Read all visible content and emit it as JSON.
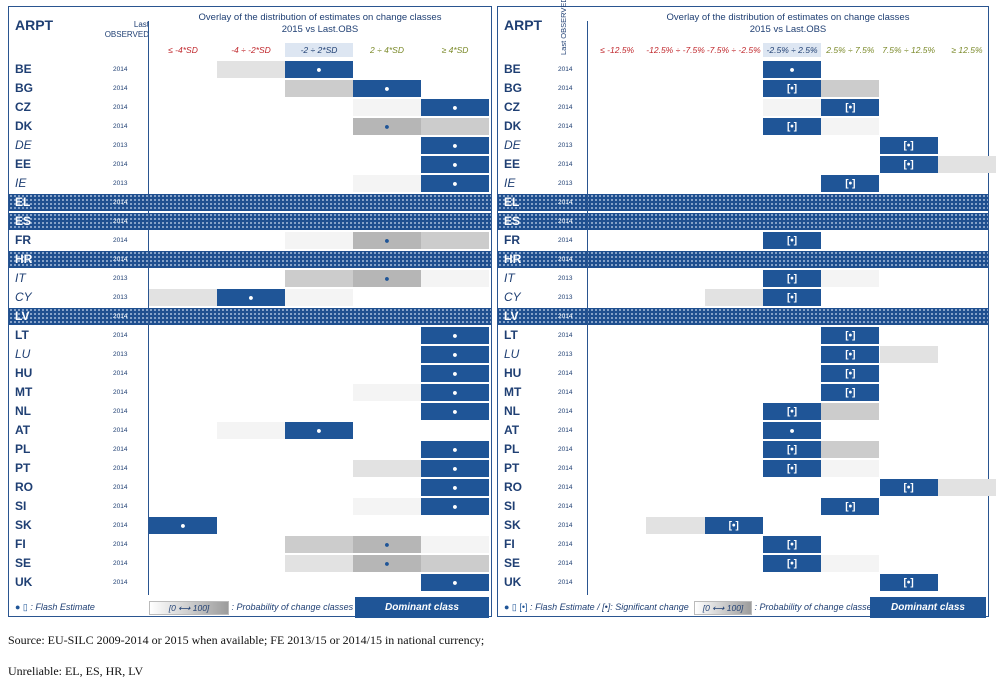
{
  "colors": {
    "dominant": "#1f5597",
    "g1": "#f4f4f4",
    "g2": "#e2e2e2",
    "g3": "#cccccc",
    "g4": "#b6b6b6"
  },
  "left": {
    "arpt": "ARPT",
    "last_observed": [
      "Last",
      "OBSERVED"
    ],
    "title1": "Overlay of the distribution of estimates on change classes",
    "title2": "2015 vs Last.OBS",
    "classes": [
      {
        "label": "≤ -4*SD",
        "color": "#c0282d"
      },
      {
        "label": "-4 ÷ -2*SD",
        "color": "#c0282d"
      },
      {
        "label": "-2 ÷ 2*SD",
        "color": "#1f3f73"
      },
      {
        "label": "2 ÷ 4*SD",
        "color": "#7b8a2a"
      },
      {
        "label": "≥ 4*SD",
        "color": "#7b8a2a"
      }
    ],
    "legend": {
      "flash": "Flash Estimate",
      "range_from": "[0",
      "range_to": "100]",
      "prob": ": Probability of change classes",
      "dominant": "Dominant class"
    }
  },
  "right": {
    "arpt": "ARPT",
    "last_observed": "Last OBSERVED",
    "title1": "Overlay of the distribution of estimates on change classes",
    "title2": "2015 vs Last.OBS",
    "classes": [
      {
        "label": "≤ -12.5%",
        "color": "#c0282d"
      },
      {
        "label": "-12.5% ÷ -7.5%",
        "color": "#c0282d"
      },
      {
        "label": "-7.5% ÷ -2.5%",
        "color": "#c0282d"
      },
      {
        "label": "-2.5% ÷ 2.5%",
        "color": "#1f3f73"
      },
      {
        "label": "2.5% ÷ 7.5%",
        "color": "#7b8a2a"
      },
      {
        "label": "7.5% ÷ 12.5%",
        "color": "#7b8a2a"
      },
      {
        "label": "≥ 12.5%",
        "color": "#7b8a2a"
      }
    ],
    "legend": {
      "flash": "Flash Estimate  /  [•]: Significant change",
      "range_from": "[0",
      "range_to": "100]",
      "prob": ": Probability of change classes",
      "dominant": "Dominant class"
    }
  },
  "rows": [
    {
      "code": "BE",
      "year": "2014",
      "italic": false,
      "L": [
        0,
        2,
        "D",
        0,
        0
      ],
      "Ld": 2,
      "R": [
        0,
        0,
        0,
        "D",
        0,
        0,
        0
      ],
      "Rd": 3,
      "Rb": false
    },
    {
      "code": "BG",
      "year": "2014",
      "italic": false,
      "L": [
        0,
        0,
        3,
        "D",
        0
      ],
      "Ld": 3,
      "R": [
        0,
        0,
        0,
        "D",
        3,
        0,
        0
      ],
      "Rd": 3,
      "Rb": true
    },
    {
      "code": "CZ",
      "year": "2014",
      "italic": false,
      "L": [
        0,
        0,
        0,
        1,
        "D"
      ],
      "Ld": 4,
      "R": [
        0,
        0,
        0,
        1,
        "D",
        0,
        0
      ],
      "Rd": 4,
      "Rb": true
    },
    {
      "code": "DK",
      "year": "2014",
      "italic": false,
      "L": [
        0,
        0,
        0,
        "G",
        3
      ],
      "Ld": 3,
      "R": [
        0,
        0,
        0,
        "D",
        1,
        0,
        0
      ],
      "Rd": 3,
      "Rb": true
    },
    {
      "code": "DE",
      "year": "2013",
      "italic": true,
      "L": [
        0,
        0,
        0,
        0,
        "D"
      ],
      "Ld": 4,
      "R": [
        0,
        0,
        0,
        0,
        0,
        "D",
        0
      ],
      "Rd": 5,
      "Rb": true
    },
    {
      "code": "EE",
      "year": "2014",
      "italic": false,
      "L": [
        0,
        0,
        0,
        0,
        "D"
      ],
      "Ld": 4,
      "R": [
        0,
        0,
        0,
        0,
        0,
        "D",
        2
      ],
      "Rd": 5,
      "Rb": true
    },
    {
      "code": "IE",
      "year": "2013",
      "italic": true,
      "L": [
        0,
        0,
        0,
        1,
        "D"
      ],
      "Ld": 4,
      "R": [
        0,
        0,
        0,
        0,
        "D",
        0,
        0
      ],
      "Rd": 4,
      "Rb": true
    },
    {
      "code": "EL",
      "year": "2014",
      "italic": false,
      "hatch": true
    },
    {
      "code": "ES",
      "year": "2014",
      "italic": false,
      "hatch": true
    },
    {
      "code": "FR",
      "year": "2014",
      "italic": false,
      "L": [
        0,
        0,
        1,
        "G",
        3
      ],
      "Ld": 3,
      "R": [
        0,
        0,
        0,
        "D",
        0,
        0,
        0
      ],
      "Rd": 3,
      "Rb": true
    },
    {
      "code": "HR",
      "year": "2014",
      "italic": false,
      "hatch": true
    },
    {
      "code": "IT",
      "year": "2013",
      "italic": true,
      "L": [
        0,
        0,
        3,
        "G",
        1
      ],
      "Ld": 3,
      "R": [
        0,
        0,
        0,
        "D",
        1,
        0,
        0
      ],
      "Rd": 3,
      "Rb": true
    },
    {
      "code": "CY",
      "year": "2013",
      "italic": true,
      "L": [
        2,
        "D",
        1,
        0,
        0
      ],
      "Ld": 1,
      "R": [
        0,
        0,
        2,
        "D",
        0,
        0,
        0
      ],
      "Rd": 3,
      "Rb": true
    },
    {
      "code": "LV",
      "year": "2014",
      "italic": false,
      "hatch": true
    },
    {
      "code": "LT",
      "year": "2014",
      "italic": false,
      "L": [
        0,
        0,
        0,
        0,
        "D"
      ],
      "Ld": 4,
      "R": [
        0,
        0,
        0,
        0,
        "D",
        0,
        0
      ],
      "Rd": 4,
      "Rb": true
    },
    {
      "code": "LU",
      "year": "2013",
      "italic": true,
      "L": [
        0,
        0,
        0,
        0,
        "D"
      ],
      "Ld": 4,
      "R": [
        0,
        0,
        0,
        0,
        "D",
        2,
        0
      ],
      "Rd": 4,
      "Rb": true
    },
    {
      "code": "HU",
      "year": "2014",
      "italic": false,
      "L": [
        0,
        0,
        0,
        0,
        "D"
      ],
      "Ld": 4,
      "R": [
        0,
        0,
        0,
        0,
        "D",
        0,
        0
      ],
      "Rd": 4,
      "Rb": true
    },
    {
      "code": "MT",
      "year": "2014",
      "italic": false,
      "L": [
        0,
        0,
        0,
        1,
        "D"
      ],
      "Ld": 4,
      "R": [
        0,
        0,
        0,
        0,
        "D",
        0,
        0
      ],
      "Rd": 4,
      "Rb": true
    },
    {
      "code": "NL",
      "year": "2014",
      "italic": false,
      "L": [
        0,
        0,
        0,
        0,
        "D"
      ],
      "Ld": 4,
      "R": [
        0,
        0,
        0,
        "D",
        3,
        0,
        0
      ],
      "Rd": 3,
      "Rb": true
    },
    {
      "code": "AT",
      "year": "2014",
      "italic": false,
      "L": [
        0,
        1,
        "D",
        0,
        0
      ],
      "Ld": 2,
      "R": [
        0,
        0,
        0,
        "D",
        0,
        0,
        0
      ],
      "Rd": 3,
      "Rb": false
    },
    {
      "code": "PL",
      "year": "2014",
      "italic": false,
      "L": [
        0,
        0,
        0,
        0,
        "D"
      ],
      "Ld": 4,
      "R": [
        0,
        0,
        0,
        "D",
        3,
        0,
        0
      ],
      "Rd": 3,
      "Rb": true
    },
    {
      "code": "PT",
      "year": "2014",
      "italic": false,
      "L": [
        0,
        0,
        0,
        2,
        "D"
      ],
      "Ld": 4,
      "R": [
        0,
        0,
        0,
        "D",
        1,
        0,
        0
      ],
      "Rd": 3,
      "Rb": true
    },
    {
      "code": "RO",
      "year": "2014",
      "italic": false,
      "L": [
        0,
        0,
        0,
        0,
        "D"
      ],
      "Ld": 4,
      "R": [
        0,
        0,
        0,
        0,
        0,
        "D",
        2
      ],
      "Rd": 5,
      "Rb": true
    },
    {
      "code": "SI",
      "year": "2014",
      "italic": false,
      "L": [
        0,
        0,
        0,
        1,
        "D"
      ],
      "Ld": 4,
      "R": [
        0,
        0,
        0,
        0,
        "D",
        0,
        0
      ],
      "Rd": 4,
      "Rb": true
    },
    {
      "code": "SK",
      "year": "2014",
      "italic": false,
      "L": [
        "D",
        0,
        0,
        0,
        0
      ],
      "Ld": 0,
      "R": [
        0,
        2,
        "D",
        0,
        0,
        0,
        0
      ],
      "Rd": 2,
      "Rb": true
    },
    {
      "code": "FI",
      "year": "2014",
      "italic": false,
      "L": [
        0,
        0,
        3,
        "G",
        1
      ],
      "Ld": 3,
      "R": [
        0,
        0,
        0,
        "D",
        0,
        0,
        0
      ],
      "Rd": 3,
      "Rb": true
    },
    {
      "code": "SE",
      "year": "2014",
      "italic": false,
      "L": [
        0,
        0,
        2,
        "G",
        3
      ],
      "Ld": 3,
      "R": [
        0,
        0,
        0,
        "D",
        1,
        0,
        0
      ],
      "Rd": 3,
      "Rb": true
    },
    {
      "code": "UK",
      "year": "2014",
      "italic": false,
      "L": [
        0,
        0,
        0,
        0,
        "D"
      ],
      "Ld": 4,
      "R": [
        0,
        0,
        0,
        0,
        0,
        "D",
        0
      ],
      "Rd": 5,
      "Rb": true
    }
  ],
  "footer": {
    "source": "Source: EU-SILC 2009-2014 or 2015 when available; FE 2013/15 or 2014/15 in national currency;",
    "unreliable": "Unreliable: EL, ES, HR, LV"
  }
}
